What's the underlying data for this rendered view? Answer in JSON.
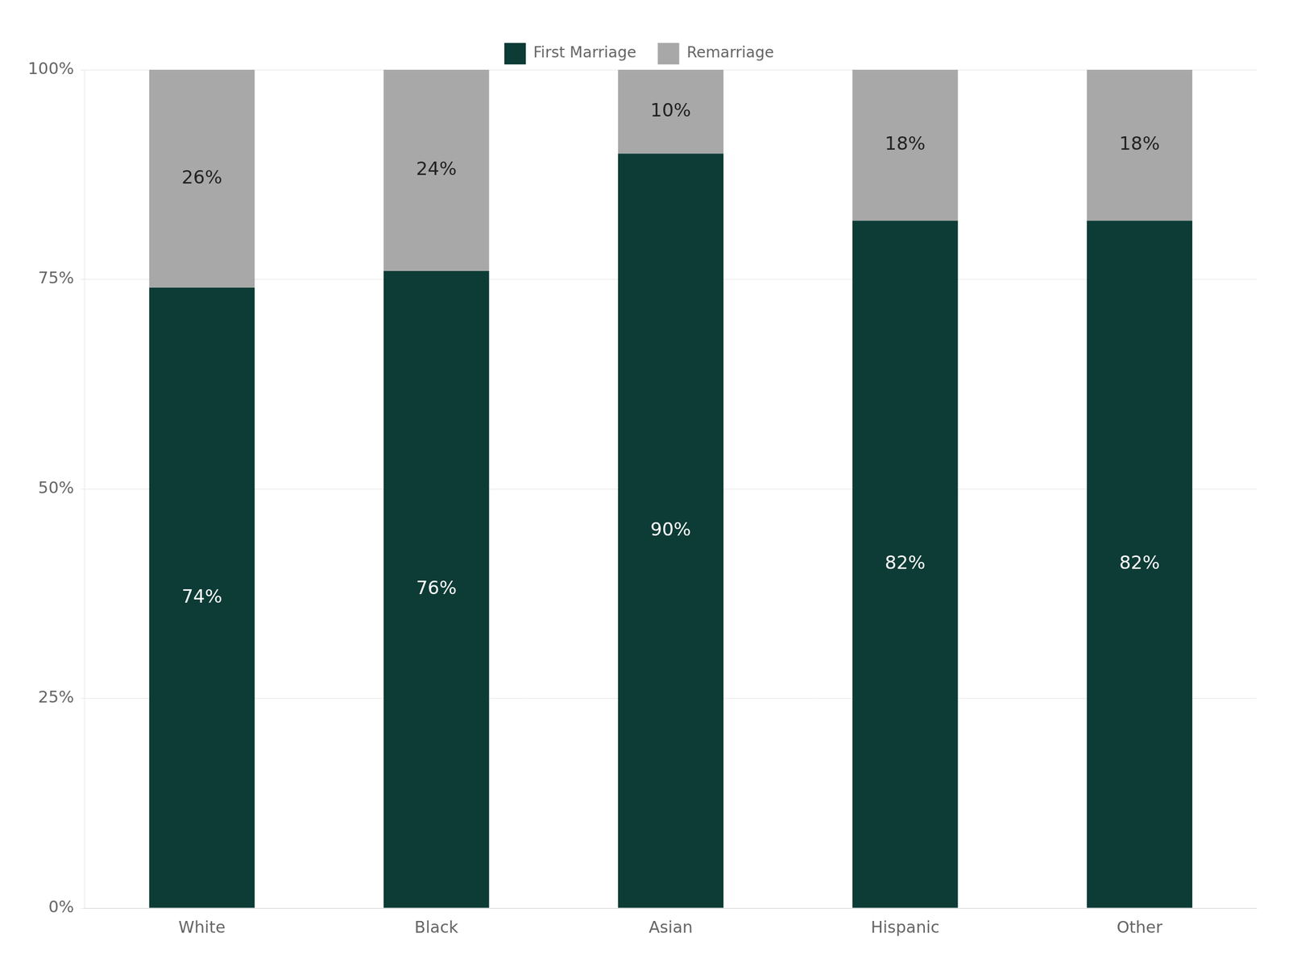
{
  "chart_data": {
    "type": "bar",
    "stacked": true,
    "categories": [
      "White",
      "Black",
      "Asian",
      "Hispanic",
      "Other"
    ],
    "series": [
      {
        "name": "First Marriage",
        "color": "#0d3b35",
        "values": [
          74,
          76,
          90,
          82,
          82
        ],
        "value_labels": [
          "74%",
          "76%",
          "90%",
          "82%",
          "82%"
        ]
      },
      {
        "name": "Remarriage",
        "color": "#a8a8a8",
        "values": [
          26,
          24,
          10,
          18,
          18
        ],
        "value_labels": [
          "26%",
          "24%",
          "10%",
          "18%",
          "18%"
        ]
      }
    ],
    "ylim": [
      0,
      100
    ],
    "yticks": [
      {
        "value": 0,
        "label": "0%"
      },
      {
        "value": 25,
        "label": "25%"
      },
      {
        "value": 50,
        "label": "50%"
      },
      {
        "value": 75,
        "label": "75%"
      },
      {
        "value": 100,
        "label": "100%"
      }
    ],
    "grid": true,
    "legend": "top",
    "data_labels": true
  }
}
